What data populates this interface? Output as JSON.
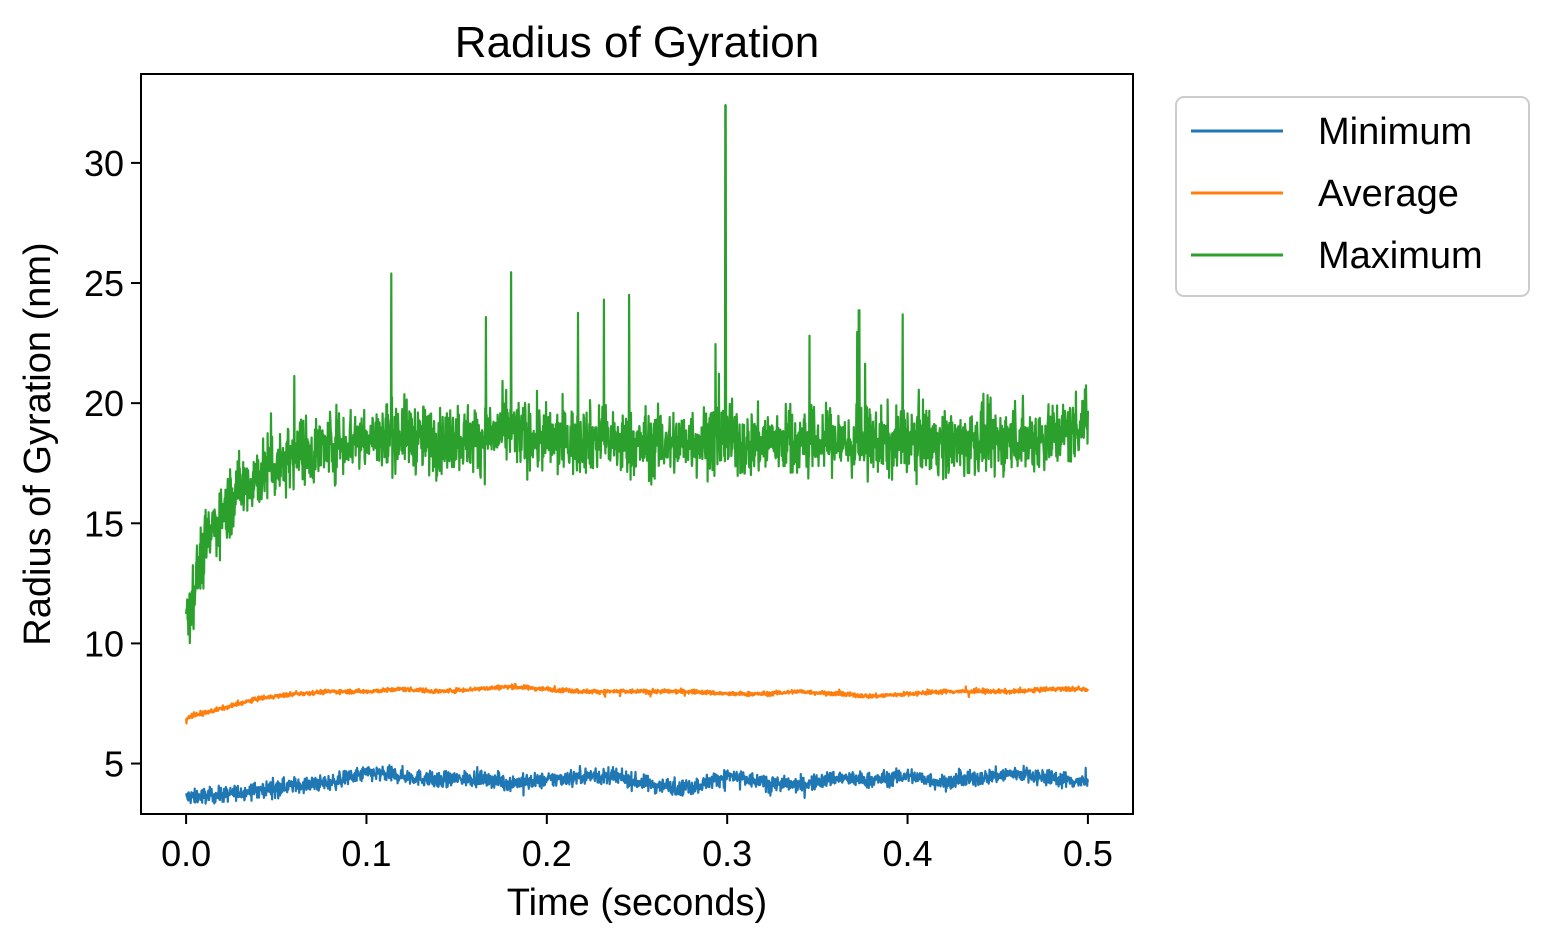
{
  "chart_data": {
    "type": "line",
    "title": "Radius of Gyration",
    "xlabel": "Time (seconds)",
    "ylabel": "Radius of Gyration (nm)",
    "xlim": [
      -0.025,
      0.525
    ],
    "ylim": [
      2.9,
      33.7
    ],
    "xticks": [
      0.0,
      0.1,
      0.2,
      0.3,
      0.4,
      0.5
    ],
    "xtick_labels": [
      "0.0",
      "0.1",
      "0.2",
      "0.3",
      "0.4",
      "0.5"
    ],
    "yticks": [
      5,
      10,
      15,
      20,
      25,
      30
    ],
    "ytick_labels": [
      "5",
      "10",
      "15",
      "20",
      "25",
      "30"
    ],
    "grid": false,
    "legend_position": "outside-top-right",
    "series": [
      {
        "name": "Minimum",
        "color": "#1f77b4",
        "x": [
          0.0,
          0.02,
          0.04,
          0.06,
          0.08,
          0.1,
          0.12,
          0.14,
          0.16,
          0.18,
          0.2,
          0.22,
          0.24,
          0.26,
          0.28,
          0.3,
          0.32,
          0.34,
          0.36,
          0.38,
          0.4,
          0.42,
          0.44,
          0.46,
          0.48,
          0.5
        ],
        "y": [
          3.6,
          3.7,
          3.9,
          4.1,
          4.2,
          4.6,
          4.5,
          4.3,
          4.4,
          4.2,
          4.3,
          4.5,
          4.4,
          4.1,
          4.0,
          4.5,
          4.2,
          4.1,
          4.4,
          4.3,
          4.5,
          4.2,
          4.4,
          4.6,
          4.4,
          4.2
        ]
      },
      {
        "name": "Average",
        "color": "#ff7f0e",
        "x": [
          0.0,
          0.02,
          0.04,
          0.06,
          0.08,
          0.1,
          0.12,
          0.14,
          0.16,
          0.18,
          0.2,
          0.22,
          0.24,
          0.26,
          0.28,
          0.3,
          0.32,
          0.34,
          0.36,
          0.38,
          0.4,
          0.42,
          0.44,
          0.46,
          0.48,
          0.5
        ],
        "y": [
          6.9,
          7.3,
          7.7,
          7.9,
          8.0,
          8.0,
          8.1,
          8.0,
          8.1,
          8.2,
          8.1,
          8.0,
          8.0,
          8.0,
          8.0,
          7.9,
          7.9,
          8.0,
          7.9,
          7.8,
          7.9,
          8.0,
          8.0,
          8.0,
          8.1,
          8.1
        ]
      },
      {
        "name": "Maximum",
        "color": "#2ca02c",
        "x": [
          0.0,
          0.01,
          0.02,
          0.03,
          0.04,
          0.05,
          0.06,
          0.07,
          0.08,
          0.09,
          0.1,
          0.11,
          0.12,
          0.13,
          0.14,
          0.15,
          0.16,
          0.17,
          0.18,
          0.19,
          0.2,
          0.21,
          0.22,
          0.23,
          0.24,
          0.25,
          0.26,
          0.27,
          0.28,
          0.29,
          0.3,
          0.31,
          0.32,
          0.33,
          0.34,
          0.35,
          0.36,
          0.37,
          0.38,
          0.39,
          0.4,
          0.41,
          0.42,
          0.43,
          0.44,
          0.45,
          0.46,
          0.47,
          0.48,
          0.49,
          0.5
        ],
        "y": [
          11.0,
          14.0,
          15.5,
          16.5,
          17.0,
          17.5,
          18.0,
          18.0,
          18.3,
          18.5,
          18.5,
          18.6,
          18.8,
          18.5,
          18.4,
          18.6,
          18.5,
          18.7,
          18.9,
          18.6,
          18.5,
          18.4,
          18.5,
          18.6,
          18.3,
          18.2,
          18.4,
          18.3,
          18.5,
          18.4,
          18.6,
          18.2,
          18.4,
          18.5,
          18.3,
          18.4,
          18.5,
          18.2,
          18.4,
          18.3,
          18.5,
          18.6,
          18.4,
          18.3,
          18.5,
          18.4,
          18.6,
          18.5,
          18.7,
          18.8,
          19.5
        ]
      }
    ]
  }
}
